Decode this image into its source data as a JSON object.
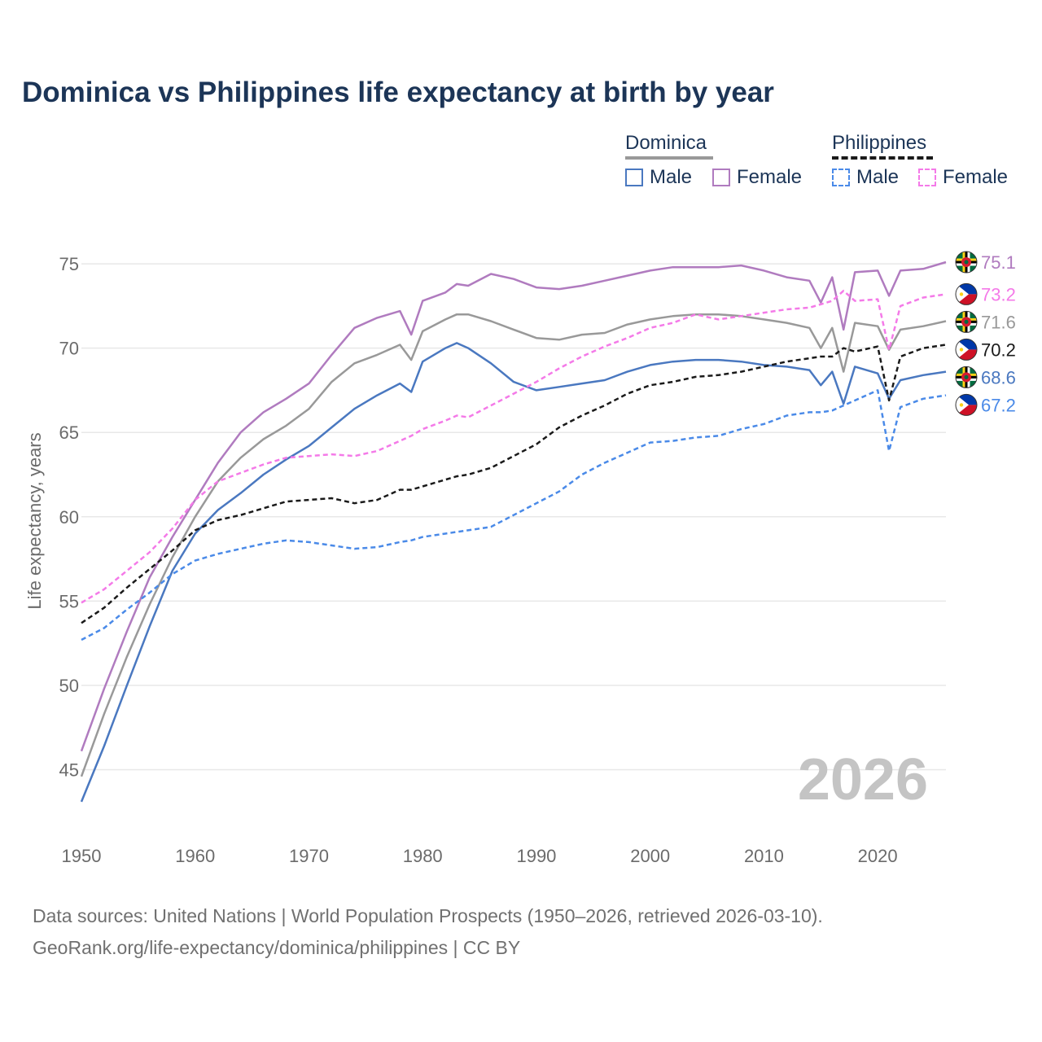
{
  "title": "Dominica vs Philippines life expectancy at birth by year",
  "legend": {
    "dominica": {
      "label": "Dominica",
      "male": "Male",
      "female": "Female"
    },
    "philippines": {
      "label": "Philippines",
      "male": "Male",
      "female": "Female"
    }
  },
  "current_year": "2026",
  "sources": {
    "line1": "Data sources: United Nations | World Population Prospects (1950–2026, retrieved 2026-03-10).",
    "line2": "GeoRank.org/life-expectancy/dominica/philippines | CC BY"
  },
  "colors": {
    "dominica_total": "#999999",
    "dominica_male": "#4a78c0",
    "dominica_female": "#b07bbf",
    "philippines_total": "#1a1a1a",
    "philippines_male": "#4a8ae8",
    "philippines_female": "#f47ae8",
    "grid": "#e8e8e8",
    "axis_text": "#6b6b6b",
    "watermark": "#c4c4c4"
  },
  "chart_data": {
    "type": "line",
    "title": "Dominica vs Philippines life expectancy at birth by year",
    "xlabel": "",
    "ylabel": "Life expectancy, years",
    "xlim": [
      1950,
      2026
    ],
    "ylim": [
      41.5,
      76.5
    ],
    "x_ticks": [
      1950,
      1960,
      1970,
      1980,
      1990,
      2000,
      2010,
      2020
    ],
    "y_ticks": [
      45,
      50,
      55,
      60,
      65,
      70,
      75
    ],
    "grid": "horizontal",
    "keyframes": [
      1950,
      1952,
      1954,
      1956,
      1958,
      1960,
      1962,
      1964,
      1966,
      1968,
      1970,
      1972,
      1974,
      1976,
      1978,
      1979,
      1980,
      1982,
      1983,
      1984,
      1986,
      1988,
      1990,
      1992,
      1994,
      1996,
      1998,
      2000,
      2002,
      2004,
      2006,
      2008,
      2010,
      2012,
      2014,
      2015,
      2016,
      2017,
      2018,
      2020,
      2021,
      2022,
      2024,
      2026
    ],
    "series": [
      {
        "key": "dominica_female",
        "name": "Dominica Female",
        "country": "Dominica",
        "sex": "Female",
        "dashed": false,
        "end_label": "75.1",
        "values": [
          46.1,
          49.8,
          53.2,
          56.4,
          58.8,
          61.0,
          63.2,
          65.0,
          66.2,
          67.0,
          67.9,
          69.6,
          71.2,
          71.8,
          72.2,
          70.8,
          72.8,
          73.3,
          73.8,
          73.7,
          74.4,
          74.1,
          73.6,
          73.5,
          73.7,
          74.0,
          74.3,
          74.6,
          74.8,
          74.8,
          74.8,
          74.9,
          74.6,
          74.2,
          74.0,
          72.7,
          74.2,
          71.1,
          74.5,
          74.6,
          73.1,
          74.6,
          74.7,
          75.1
        ]
      },
      {
        "key": "dominica_total",
        "name": "Dominica",
        "country": "Dominica",
        "sex": "Total",
        "dashed": false,
        "end_label": "71.6",
        "values": [
          44.6,
          48.3,
          51.7,
          54.8,
          57.6,
          60.0,
          62.1,
          63.5,
          64.6,
          65.4,
          66.4,
          68.0,
          69.1,
          69.6,
          70.2,
          69.3,
          71.0,
          71.7,
          72.0,
          72.0,
          71.6,
          71.1,
          70.6,
          70.5,
          70.8,
          70.9,
          71.4,
          71.7,
          71.9,
          72.0,
          72.0,
          71.9,
          71.7,
          71.5,
          71.2,
          70.0,
          71.2,
          68.6,
          71.5,
          71.3,
          69.9,
          71.1,
          71.3,
          71.6
        ]
      },
      {
        "key": "dominica_male",
        "name": "Dominica Male",
        "country": "Dominica",
        "sex": "Male",
        "dashed": false,
        "end_label": "68.6",
        "values": [
          43.1,
          46.4,
          50.0,
          53.5,
          56.8,
          59.0,
          60.4,
          61.4,
          62.5,
          63.4,
          64.2,
          65.3,
          66.4,
          67.2,
          67.9,
          67.4,
          69.2,
          70.0,
          70.3,
          70.0,
          69.1,
          68.0,
          67.5,
          67.7,
          67.9,
          68.1,
          68.6,
          69.0,
          69.2,
          69.3,
          69.3,
          69.2,
          69.0,
          68.9,
          68.7,
          67.8,
          68.6,
          66.7,
          68.9,
          68.5,
          67.0,
          68.1,
          68.4,
          68.6
        ]
      },
      {
        "key": "philippines_female",
        "name": "Philippines Female",
        "country": "Philippines",
        "sex": "Female",
        "dashed": true,
        "end_label": "73.2",
        "values": [
          54.9,
          55.7,
          56.8,
          57.9,
          59.3,
          61.0,
          62.1,
          62.6,
          63.1,
          63.5,
          63.6,
          63.7,
          63.6,
          63.9,
          64.5,
          64.8,
          65.2,
          65.7,
          66.0,
          65.9,
          66.6,
          67.3,
          68.0,
          68.8,
          69.5,
          70.1,
          70.6,
          71.2,
          71.5,
          72.0,
          71.7,
          71.9,
          72.1,
          72.3,
          72.4,
          72.6,
          72.8,
          73.4,
          72.8,
          72.9,
          69.9,
          72.5,
          73.0,
          73.2
        ]
      },
      {
        "key": "philippines_total",
        "name": "Philippines",
        "country": "Philippines",
        "sex": "Total",
        "dashed": true,
        "end_label": "70.2",
        "values": [
          53.7,
          54.6,
          55.8,
          56.9,
          58.0,
          59.2,
          59.8,
          60.1,
          60.5,
          60.9,
          61.0,
          61.1,
          60.8,
          61.0,
          61.6,
          61.6,
          61.8,
          62.2,
          62.4,
          62.5,
          62.9,
          63.6,
          64.3,
          65.3,
          66.0,
          66.6,
          67.3,
          67.8,
          68.0,
          68.3,
          68.4,
          68.6,
          68.9,
          69.2,
          69.4,
          69.5,
          69.5,
          70.0,
          69.8,
          70.1,
          66.9,
          69.5,
          70.0,
          70.2
        ]
      },
      {
        "key": "philippines_male",
        "name": "Philippines Male",
        "country": "Philippines",
        "sex": "Male",
        "dashed": true,
        "end_label": "67.2",
        "values": [
          52.7,
          53.4,
          54.5,
          55.5,
          56.6,
          57.4,
          57.8,
          58.1,
          58.4,
          58.6,
          58.5,
          58.3,
          58.1,
          58.2,
          58.5,
          58.6,
          58.8,
          59.0,
          59.1,
          59.2,
          59.4,
          60.1,
          60.8,
          61.5,
          62.5,
          63.2,
          63.8,
          64.4,
          64.5,
          64.7,
          64.8,
          65.2,
          65.5,
          66.0,
          66.2,
          66.2,
          66.3,
          66.6,
          66.9,
          67.5,
          63.9,
          66.5,
          67.0,
          67.2
        ]
      }
    ]
  }
}
